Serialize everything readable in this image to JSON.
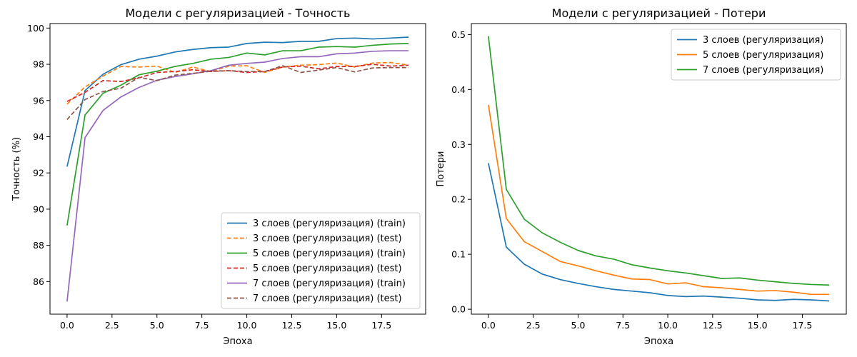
{
  "chart_data": [
    {
      "type": "line",
      "title": "Модели с регуляризацией - Точность",
      "xlabel": "Эпоха",
      "ylabel": "Точность (%)",
      "xlim": [
        -0.95,
        19.95
      ],
      "ylim": [
        84.2,
        100.25
      ],
      "x_ticks": [
        0,
        2.5,
        5,
        7.5,
        10,
        12.5,
        15,
        17.5
      ],
      "x_tick_labels": [
        "0.0",
        "2.5",
        "5.0",
        "7.5",
        "10.0",
        "12.5",
        "15.0",
        "17.5"
      ],
      "y_ticks": [
        86,
        88,
        90,
        92,
        94,
        96,
        98,
        100
      ],
      "y_tick_labels": [
        "86",
        "88",
        "90",
        "92",
        "94",
        "96",
        "98",
        "100"
      ],
      "grid": false,
      "legend_position": "lower-right",
      "x": [
        0,
        1,
        2,
        3,
        4,
        5,
        6,
        7,
        8,
        9,
        10,
        11,
        12,
        13,
        14,
        15,
        16,
        17,
        18,
        19
      ],
      "series": [
        {
          "name": "3 слоев (регуляризация) (train)",
          "color": "#1f77b4",
          "dash": "solid",
          "values": [
            92.35,
            96.55,
            97.45,
            97.98,
            98.28,
            98.45,
            98.68,
            98.82,
            98.92,
            98.95,
            99.15,
            99.22,
            99.2,
            99.27,
            99.27,
            99.42,
            99.45,
            99.4,
            99.45,
            99.5
          ]
        },
        {
          "name": "3 слоев (регуляризация) (test)",
          "color": "#ff7f0e",
          "dash": "dashed",
          "values": [
            95.8,
            96.75,
            97.35,
            97.88,
            97.85,
            97.9,
            97.55,
            97.85,
            97.6,
            97.9,
            97.92,
            97.55,
            97.85,
            97.95,
            97.98,
            98.07,
            97.85,
            98.07,
            98.1,
            97.95
          ]
        },
        {
          "name": "5 слоев (регуляризация) (train)",
          "color": "#2ca02c",
          "dash": "solid",
          "values": [
            89.1,
            95.2,
            96.4,
            96.85,
            97.42,
            97.62,
            97.88,
            98.05,
            98.28,
            98.38,
            98.62,
            98.52,
            98.75,
            98.75,
            98.95,
            98.98,
            98.95,
            99.05,
            99.12,
            99.15
          ]
        },
        {
          "name": "5 слоев (регуляризация) (test)",
          "color": "#d62728",
          "dash": "dashed",
          "values": [
            95.95,
            96.45,
            97.1,
            97.05,
            97.25,
            97.55,
            97.6,
            97.7,
            97.6,
            97.65,
            97.55,
            97.6,
            97.85,
            97.9,
            97.75,
            97.88,
            97.88,
            98.0,
            97.9,
            97.95
          ]
        },
        {
          "name": "7 слоев (регуляризация) (train)",
          "color": "#9467bd",
          "dash": "solid",
          "values": [
            84.9,
            93.95,
            95.45,
            96.2,
            96.72,
            97.12,
            97.32,
            97.48,
            97.65,
            97.95,
            98.05,
            98.12,
            98.32,
            98.42,
            98.42,
            98.58,
            98.62,
            98.72,
            98.75,
            98.75
          ]
        },
        {
          "name": "7 слоев (регуляризация) (test)",
          "color": "#8c564b",
          "dash": "dashed",
          "values": [
            94.95,
            96.05,
            96.5,
            96.68,
            97.28,
            97.1,
            97.4,
            97.5,
            97.62,
            97.65,
            97.6,
            97.6,
            97.92,
            97.55,
            97.68,
            97.82,
            97.58,
            97.8,
            97.82,
            97.82
          ]
        }
      ]
    },
    {
      "type": "line",
      "title": "Модели с регуляризацией - Потери",
      "xlabel": "Эпоха",
      "ylabel": "Потери",
      "xlim": [
        -0.95,
        19.95
      ],
      "ylim": [
        -0.009,
        0.52
      ],
      "x_ticks": [
        0,
        2.5,
        5,
        7.5,
        10,
        12.5,
        15,
        17.5
      ],
      "x_tick_labels": [
        "0.0",
        "2.5",
        "5.0",
        "7.5",
        "10.0",
        "12.5",
        "15.0",
        "17.5"
      ],
      "y_ticks": [
        0,
        0.1,
        0.2,
        0.3,
        0.4,
        0.5
      ],
      "y_tick_labels": [
        "0.0",
        "0.1",
        "0.2",
        "0.3",
        "0.4",
        "0.5"
      ],
      "grid": false,
      "legend_position": "upper-right",
      "x": [
        0,
        1,
        2,
        3,
        4,
        5,
        6,
        7,
        8,
        9,
        10,
        11,
        12,
        13,
        14,
        15,
        16,
        17,
        18,
        19
      ],
      "series": [
        {
          "name": "3 слоев (регуляризация)",
          "color": "#1f77b4",
          "dash": "solid",
          "values": [
            0.266,
            0.113,
            0.082,
            0.064,
            0.054,
            0.047,
            0.041,
            0.036,
            0.033,
            0.03,
            0.025,
            0.023,
            0.024,
            0.022,
            0.02,
            0.017,
            0.016,
            0.018,
            0.017,
            0.015
          ]
        },
        {
          "name": "5 слоев (регуляризация)",
          "color": "#ff7f0e",
          "dash": "solid",
          "values": [
            0.372,
            0.165,
            0.123,
            0.105,
            0.087,
            0.079,
            0.07,
            0.062,
            0.055,
            0.054,
            0.046,
            0.048,
            0.041,
            0.039,
            0.036,
            0.033,
            0.034,
            0.031,
            0.027,
            0.027
          ]
        },
        {
          "name": "7 слоев (регуляризация)",
          "color": "#2ca02c",
          "dash": "solid",
          "values": [
            0.497,
            0.218,
            0.164,
            0.139,
            0.122,
            0.107,
            0.097,
            0.091,
            0.081,
            0.075,
            0.07,
            0.066,
            0.061,
            0.056,
            0.057,
            0.053,
            0.05,
            0.047,
            0.045,
            0.044
          ]
        }
      ]
    }
  ]
}
